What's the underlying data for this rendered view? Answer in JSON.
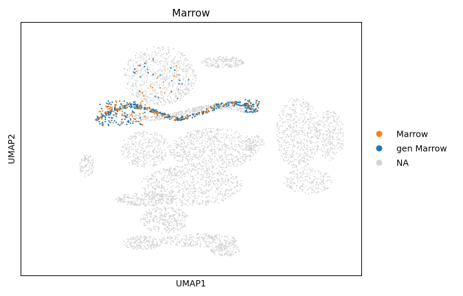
{
  "chart_data": {
    "type": "scatter",
    "title": "Marrow",
    "xlabel": "UMAP1",
    "ylabel": "UMAP2",
    "show_ticks": false,
    "grid": false,
    "legend_position": "right",
    "legend": [
      {
        "label": "Marrow",
        "color": "#ff7f0e"
      },
      {
        "label": "gen Marrow",
        "color": "#1f77b4"
      },
      {
        "label": "NA",
        "color": "#d3d3d3"
      }
    ],
    "na_color": "#d3d3d3",
    "highlight_colors": {
      "Marrow": "#ff7f0e",
      "gen Marrow": "#1f77b4"
    },
    "regions": [
      {
        "name": "top-left-blob",
        "cx": 5.2,
        "cy": 8.2,
        "rx": 1.5,
        "ry": 1.3,
        "n": 700,
        "type": "ellipse"
      },
      {
        "name": "top-right-strand",
        "cx": 7.8,
        "cy": 8.8,
        "rx": 0.9,
        "ry": 0.25,
        "n": 180,
        "type": "ellipse"
      },
      {
        "name": "right-large",
        "cx": 10.9,
        "cy": 5.7,
        "rx": 0.9,
        "ry": 1.6,
        "n": 500,
        "type": "ellipse"
      },
      {
        "name": "right-tail",
        "cx": 12.2,
        "cy": 5.6,
        "rx": 0.6,
        "ry": 1.1,
        "n": 250,
        "type": "ellipse"
      },
      {
        "name": "right-bottom-loop",
        "cx": 11.3,
        "cy": 3.6,
        "rx": 1.0,
        "ry": 0.55,
        "n": 200,
        "type": "ellipse"
      },
      {
        "name": "small-right",
        "cx": 9.1,
        "cy": 5.2,
        "rx": 0.4,
        "ry": 0.4,
        "n": 80,
        "type": "ellipse"
      },
      {
        "name": "center-blob",
        "cx": 7.4,
        "cy": 5.0,
        "rx": 1.8,
        "ry": 0.9,
        "n": 650,
        "type": "ellipse"
      },
      {
        "name": "mid-left-blob",
        "cx": 4.6,
        "cy": 5.0,
        "rx": 1.0,
        "ry": 0.8,
        "n": 300,
        "type": "ellipse"
      },
      {
        "name": "lower-center-blob",
        "cx": 6.5,
        "cy": 3.4,
        "rx": 2.1,
        "ry": 0.9,
        "n": 700,
        "type": "ellipse"
      },
      {
        "name": "lower-left-strand",
        "cx": 4.6,
        "cy": 2.8,
        "rx": 1.2,
        "ry": 0.3,
        "n": 250,
        "type": "ellipse"
      },
      {
        "name": "left-small",
        "cx": 2.2,
        "cy": 4.3,
        "rx": 0.3,
        "ry": 0.5,
        "n": 90,
        "type": "ellipse"
      },
      {
        "name": "bottom-blob",
        "cx": 5.4,
        "cy": 1.9,
        "rx": 1.0,
        "ry": 0.6,
        "n": 300,
        "type": "ellipse"
      },
      {
        "name": "bottom-arc-left",
        "cx": 4.5,
        "cy": 0.9,
        "rx": 0.8,
        "ry": 0.3,
        "n": 180,
        "type": "ellipse"
      },
      {
        "name": "bottom-strand",
        "cx": 6.8,
        "cy": 1.0,
        "rx": 1.6,
        "ry": 0.3,
        "n": 250,
        "type": "ellipse"
      },
      {
        "name": "bottom-right",
        "cx": 7.9,
        "cy": 0.6,
        "rx": 0.6,
        "ry": 0.3,
        "n": 120,
        "type": "ellipse"
      },
      {
        "name": "upper-arc",
        "cx": 6.2,
        "cy": 6.6,
        "rx": 2.6,
        "ry": 0.2,
        "n": 400,
        "type": "curve"
      }
    ],
    "highlighted_path": [
      {
        "x": 2.6,
        "y": 6.3
      },
      {
        "x": 3.3,
        "y": 6.7
      },
      {
        "x": 4.0,
        "y": 6.9
      },
      {
        "x": 4.7,
        "y": 6.8
      },
      {
        "x": 5.3,
        "y": 6.5
      },
      {
        "x": 6.0,
        "y": 6.3
      },
      {
        "x": 6.8,
        "y": 6.5
      },
      {
        "x": 7.6,
        "y": 6.9
      },
      {
        "x": 8.4,
        "y": 7.0
      },
      {
        "x": 9.0,
        "y": 6.8
      }
    ],
    "xlim": [
      0,
      13
    ],
    "ylim": [
      0,
      10
    ]
  }
}
